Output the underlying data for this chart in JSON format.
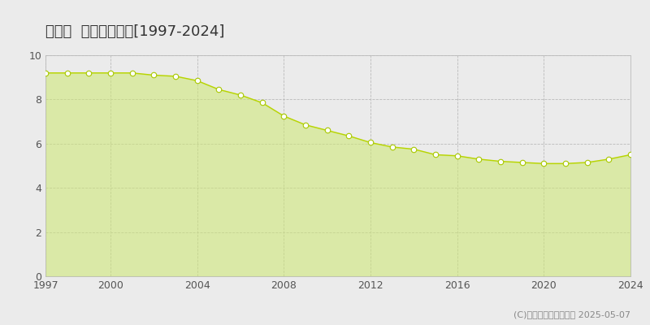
{
  "title": "桂川町  基準地価推移[1997-2024]",
  "years": [
    1997,
    1998,
    1999,
    2000,
    2001,
    2002,
    2003,
    2004,
    2005,
    2006,
    2007,
    2008,
    2009,
    2010,
    2011,
    2012,
    2013,
    2014,
    2015,
    2016,
    2017,
    2018,
    2019,
    2020,
    2021,
    2022,
    2023,
    2024
  ],
  "values": [
    9.2,
    9.2,
    9.2,
    9.2,
    9.2,
    9.1,
    9.05,
    8.85,
    8.45,
    8.2,
    7.85,
    7.25,
    6.85,
    6.6,
    6.35,
    6.05,
    5.85,
    5.75,
    5.5,
    5.45,
    5.3,
    5.2,
    5.15,
    5.1,
    5.1,
    5.15,
    5.3,
    5.5
  ],
  "fill_color": "#cde870",
  "fill_alpha": 0.55,
  "line_color": "#b8d400",
  "marker_facecolor": "white",
  "marker_edgecolor": "#a8c800",
  "bg_color": "#ebebeb",
  "plot_bg_color": "#ebebeb",
  "grid_color": "#bbbbbb",
  "ylim": [
    0,
    10
  ],
  "yticks": [
    0,
    2,
    4,
    6,
    8,
    10
  ],
  "xticks": [
    1997,
    2000,
    2004,
    2008,
    2012,
    2016,
    2020,
    2024
  ],
  "copyright_text": "(C)土地価格ドットコム 2025-05-07",
  "title_fontsize": 13,
  "tick_fontsize": 9,
  "legend_fontsize": 9,
  "copyright_fontsize": 8
}
